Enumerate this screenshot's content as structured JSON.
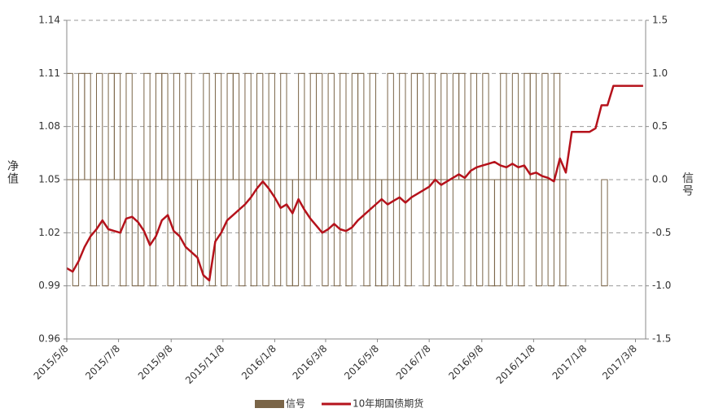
{
  "chart_data": {
    "type": "combo",
    "x": [
      "2015/5/8",
      "2015/5/15",
      "2015/5/22",
      "2015/5/29",
      "2015/6/5",
      "2015/6/12",
      "2015/6/19",
      "2015/6/26",
      "2015/7/3",
      "2015/7/10",
      "2015/7/17",
      "2015/7/24",
      "2015/7/31",
      "2015/8/7",
      "2015/8/14",
      "2015/8/21",
      "2015/8/28",
      "2015/9/4",
      "2015/9/11",
      "2015/9/18",
      "2015/9/25",
      "2015/10/2",
      "2015/10/9",
      "2015/10/16",
      "2015/10/23",
      "2015/10/30",
      "2015/11/6",
      "2015/11/13",
      "2015/11/20",
      "2015/11/27",
      "2015/12/4",
      "2015/12/11",
      "2015/12/18",
      "2015/12/25",
      "2016/1/1",
      "2016/1/8",
      "2016/1/15",
      "2016/1/22",
      "2016/1/29",
      "2016/2/5",
      "2016/2/12",
      "2016/2/19",
      "2016/2/26",
      "2016/3/4",
      "2016/3/11",
      "2016/3/18",
      "2016/3/25",
      "2016/4/1",
      "2016/4/8",
      "2016/4/15",
      "2016/4/22",
      "2016/4/29",
      "2016/5/6",
      "2016/5/13",
      "2016/5/20",
      "2016/5/27",
      "2016/6/3",
      "2016/6/10",
      "2016/6/17",
      "2016/6/24",
      "2016/7/1",
      "2016/7/8",
      "2016/7/15",
      "2016/7/22",
      "2016/7/29",
      "2016/8/5",
      "2016/8/12",
      "2016/8/19",
      "2016/8/26",
      "2016/9/2",
      "2016/9/9",
      "2016/9/16",
      "2016/9/23",
      "2016/9/30",
      "2016/10/7",
      "2016/10/14",
      "2016/10/21",
      "2016/10/28",
      "2016/11/4",
      "2016/11/11",
      "2016/11/18",
      "2016/11/25",
      "2016/12/2",
      "2016/12/9",
      "2016/12/16",
      "2016/12/23",
      "2016/12/30",
      "2017/1/6",
      "2017/1/13",
      "2017/1/20",
      "2017/1/27",
      "2017/2/3",
      "2017/2/10",
      "2017/2/17",
      "2017/2/24",
      "2017/3/3",
      "2017/3/10",
      "2017/3/17"
    ],
    "series": [
      {
        "name": "信号",
        "type": "bar",
        "axis": "y2",
        "color": "#7a6548",
        "values": [
          1,
          -1,
          1,
          1,
          -1,
          1,
          -1,
          1,
          1,
          -1,
          1,
          -1,
          -1,
          1,
          -1,
          1,
          1,
          -1,
          1,
          -1,
          1,
          -1,
          -1,
          1,
          -1,
          1,
          -1,
          1,
          1,
          -1,
          1,
          -1,
          1,
          -1,
          1,
          -1,
          1,
          -1,
          -1,
          1,
          -1,
          1,
          1,
          -1,
          1,
          -1,
          1,
          -1,
          1,
          1,
          -1,
          1,
          -1,
          -1,
          1,
          -1,
          1,
          -1,
          1,
          1,
          -1,
          1,
          -1,
          1,
          -1,
          1,
          1,
          -1,
          1,
          -1,
          1,
          -1,
          -1,
          1,
          -1,
          1,
          -1,
          1,
          1,
          -1,
          1,
          -1,
          1,
          -1,
          0,
          0,
          0,
          0,
          0,
          0,
          -1,
          0,
          0,
          0,
          0,
          0,
          0,
          0
        ]
      },
      {
        "name": "10年期国债期货",
        "type": "line",
        "color": "#b5121b",
        "values": [
          1.0,
          0.998,
          1.004,
          1.012,
          1.018,
          1.022,
          1.027,
          1.022,
          1.021,
          1.02,
          1.028,
          1.029,
          1.026,
          1.021,
          1.013,
          1.018,
          1.027,
          1.03,
          1.021,
          1.018,
          1.012,
          1.009,
          1.006,
          0.996,
          0.993,
          1.015,
          1.02,
          1.027,
          1.03,
          1.033,
          1.036,
          1.04,
          1.045,
          1.049,
          1.045,
          1.04,
          1.034,
          1.036,
          1.031,
          1.039,
          1.033,
          1.028,
          1.024,
          1.02,
          1.022,
          1.025,
          1.022,
          1.021,
          1.023,
          1.027,
          1.03,
          1.033,
          1.036,
          1.039,
          1.036,
          1.038,
          1.04,
          1.037,
          1.04,
          1.042,
          1.044,
          1.046,
          1.05,
          1.047,
          1.049,
          1.051,
          1.053,
          1.051,
          1.055,
          1.057,
          1.058,
          1.059,
          1.06,
          1.058,
          1.057,
          1.059,
          1.057,
          1.058,
          1.053,
          1.054,
          1.052,
          1.051,
          1.049,
          1.062,
          1.054,
          1.077,
          1.077,
          1.077,
          1.077,
          1.079,
          1.092,
          1.092,
          1.103,
          1.103,
          1.103,
          1.103,
          1.103,
          1.103
        ]
      }
    ],
    "y_label": "净值",
    "y2_label": "信号",
    "xlim": [
      "2015/5/8",
      "2017/3/20"
    ],
    "xticks": [
      "2015/5/8",
      "2015/7/8",
      "2015/9/8",
      "2015/11/8",
      "2016/1/8",
      "2016/3/8",
      "2016/5/8",
      "2016/7/8",
      "2016/9/8",
      "2016/11/8",
      "2017/1/8",
      "2017/3/8"
    ],
    "ylim": [
      0.96,
      1.14
    ],
    "yticks": [
      0.96,
      0.99,
      1.02,
      1.05,
      1.08,
      1.11,
      1.14
    ],
    "y2lim": [
      -1.5,
      1.5
    ],
    "y2ticks": [
      -1.5,
      {
        "value": -1,
        "label": "-1.0"
      },
      -0.5,
      {
        "value": 0,
        "label": "0.0"
      },
      0.5,
      {
        "value": 1,
        "label": "1.0"
      },
      1.5
    ],
    "grid": true,
    "legend": "bottom"
  }
}
